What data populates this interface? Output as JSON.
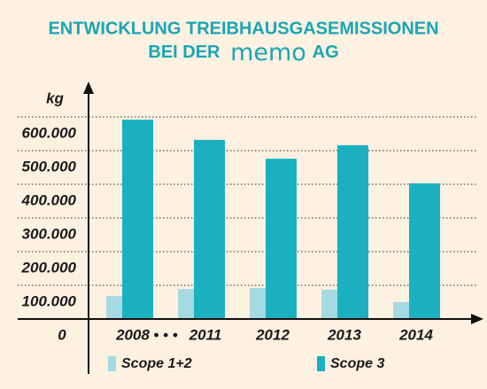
{
  "chart_data": {
    "type": "bar",
    "title": {
      "line1": "ENTWICKLUNG TREIBHAUSGASEMISSIONEN",
      "line2_prefix": "BEI DER",
      "brand": "memo",
      "line2_suffix": "AG"
    },
    "y_label": "kg",
    "categories": [
      "2008",
      "2011",
      "2012",
      "2013",
      "2014"
    ],
    "category_gap_marker": "• • •",
    "series": [
      {
        "name": "Scope 1+2",
        "color": "#a6d9e2",
        "values": [
          68000,
          89000,
          92000,
          87000,
          50000
        ]
      },
      {
        "name": "Scope 3",
        "color": "#1bb0c0",
        "values": [
          592000,
          532000,
          476000,
          516000,
          403000
        ]
      }
    ],
    "ylim": [
      0,
      600000
    ],
    "yticks": [
      0,
      {
        "value": 100000,
        "label": "100.000"
      },
      {
        "value": 200000,
        "label": "200.000"
      },
      {
        "value": 300000,
        "label": "300.000"
      },
      {
        "value": 400000,
        "label": "400.000"
      },
      {
        "value": 500000,
        "label": "500.000"
      },
      {
        "value": 600000,
        "label": "600.000"
      }
    ],
    "grid": true
  }
}
